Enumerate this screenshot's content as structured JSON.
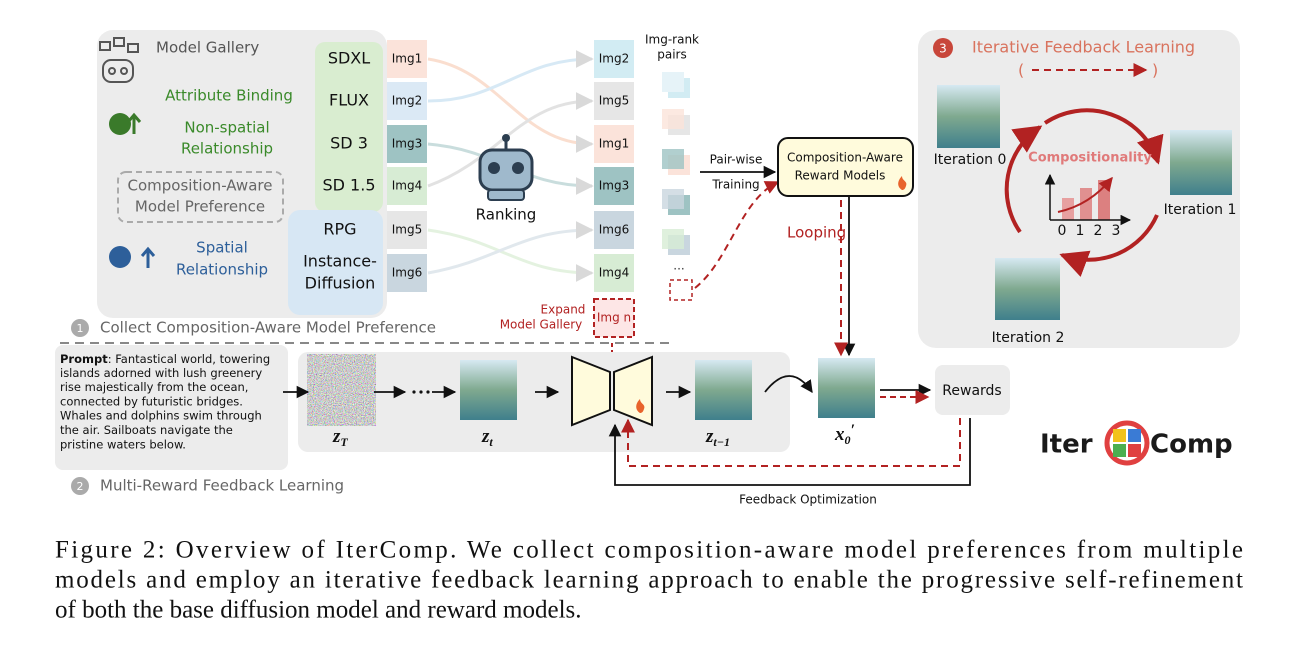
{
  "panel1": {
    "gallery": "Model Gallery",
    "attribute_binding": "Attribute Binding",
    "non_spatial": [
      "Non-spatial",
      "Relationship"
    ],
    "preference": [
      "Composition-Aware",
      "Model Preference"
    ],
    "spatial": [
      "Spatial",
      "Relationship"
    ],
    "models": [
      [
        "SDXL"
      ],
      [
        "FLUX"
      ],
      [
        "SD 3"
      ],
      [
        "SD 1.5"
      ],
      [
        "RPG"
      ],
      [
        "Instance-",
        "Diffusion"
      ]
    ],
    "images": [
      "Img1",
      "Img2",
      "Img3",
      "Img4",
      "Img5",
      "Img6"
    ],
    "ranking": "Ranking",
    "ranked": [
      "Img2",
      "Img5",
      "Img1",
      "Img3",
      "Img6",
      "Img4",
      "Img n"
    ],
    "expand": [
      "Expand",
      "Model Gallery"
    ],
    "pairs_label": [
      "Img-rank",
      "pairs"
    ],
    "ellipsis": "...",
    "pairwise": [
      "Pair-wise",
      "Training"
    ],
    "reward_model": [
      "Composition-Aware",
      "Reward Models"
    ],
    "looping": "Looping",
    "number": "1",
    "title": "Collect Composition-Aware Model Preference"
  },
  "panel3": {
    "number": "3",
    "title": "Iterative Feedback Learning",
    "brackets": [
      "(",
      ")"
    ],
    "iterations": [
      "Iteration 0",
      "Iteration 1",
      "Iteration 2"
    ],
    "chart_title": "Compositionality",
    "chart_ticks": [
      0,
      1,
      2,
      3
    ]
  },
  "panel2": {
    "prompt_label": "Prompt",
    "prompt_lines": [
      ": Fantastical world, towering",
      "islands adorned with lush greenery",
      "rise majestically from the ocean,",
      "connected by futuristic bridges.",
      "Whales and dolphins swim through",
      "the air. Sailboats navigate the",
      "pristine waters below."
    ],
    "latents": [
      {
        "base": "z",
        "sub": "T"
      },
      {
        "base": "z",
        "sub": "t"
      },
      {
        "base": "z",
        "sub": "t−1"
      },
      {
        "base": "x",
        "sub": "0",
        "prime": "′"
      }
    ],
    "rewards": "Rewards",
    "feedback": "Feedback Optimization",
    "number": "2",
    "title": "Multi-Reward Feedback Learning"
  },
  "logo": [
    "Iter",
    "Comp"
  ],
  "caption": [
    "Figure 2: Overview of IterComp. We collect composition-aware model preferences from multiple",
    "models and employ an iterative feedback learning approach to enable the progressive self-refinement",
    "of both the base diffusion model and reward models."
  ]
}
